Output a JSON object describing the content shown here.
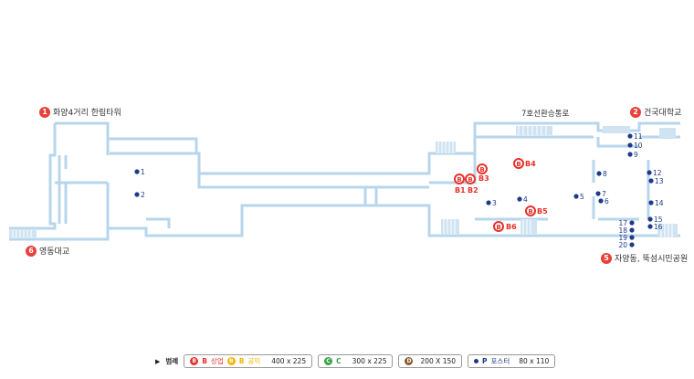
{
  "exits": [
    {
      "num": "1",
      "label": "화양4거리 한림타워"
    },
    {
      "num": "2",
      "label": "건국대학교"
    },
    {
      "num": "5",
      "label": "자양동, 뚝섬시민공원"
    },
    {
      "num": "6",
      "label": "영동대교"
    }
  ],
  "transfer_label": "7호선환승통로",
  "ad_spots": [
    {
      "id": "1"
    },
    {
      "id": "2"
    },
    {
      "id": "3"
    },
    {
      "id": "4"
    },
    {
      "id": "5"
    },
    {
      "id": "6"
    },
    {
      "id": "7"
    },
    {
      "id": "8"
    },
    {
      "id": "9"
    },
    {
      "id": "10"
    },
    {
      "id": "11"
    },
    {
      "id": "12"
    },
    {
      "id": "13"
    },
    {
      "id": "14"
    },
    {
      "id": "15"
    },
    {
      "id": "16"
    },
    {
      "id": "17"
    },
    {
      "id": "18"
    },
    {
      "id": "19"
    },
    {
      "id": "20"
    }
  ],
  "b_spots": [
    "B1",
    "B2",
    "B3",
    "B4",
    "B5",
    "B6"
  ],
  "legend": {
    "title": "범례",
    "b_item1": "B",
    "b_label1": "상업",
    "b_item2": "B",
    "b_label2": "공익",
    "b_size": "400 x 225",
    "c_item": "C",
    "c_size": "300 x 225",
    "d_size": "200 X 150",
    "p_item": "P",
    "p_label": "포스터",
    "p_size": "80 x 110"
  },
  "colors": {
    "wall": "#c6dff0",
    "wall_stroke": "#a9cde6",
    "ad_dot": "#1f3a8a",
    "b_spot": "#e8302a",
    "exit_badge": "#e8403a",
    "legend_c": "#3aa34a",
    "legend_d": "#8a5a2b",
    "legend_bpublic": "#f5b400"
  }
}
